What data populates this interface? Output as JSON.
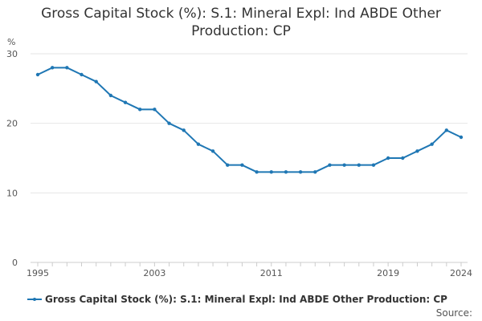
{
  "chart_data": {
    "type": "line",
    "title_lines": [
      "Gross Capital Stock (%): S.1: Mineral Expl: Ind ABDE Other",
      "Production: CP"
    ],
    "ylabel": "%",
    "xlabel": "",
    "x": [
      1995,
      1996,
      1997,
      1998,
      1999,
      2000,
      2001,
      2002,
      2003,
      2004,
      2005,
      2006,
      2007,
      2008,
      2009,
      2010,
      2011,
      2012,
      2013,
      2014,
      2015,
      2016,
      2017,
      2018,
      2019,
      2020,
      2021,
      2022,
      2023,
      2024
    ],
    "series": [
      {
        "name": "Gross Capital Stock (%): S.1: Mineral Expl: Ind ABDE Other Production: CP",
        "values": [
          27,
          28,
          28,
          27,
          26,
          24,
          23,
          22,
          22,
          20,
          19,
          17,
          16,
          14,
          14,
          13,
          13,
          13,
          13,
          13,
          14,
          14,
          14,
          14,
          15,
          15,
          16,
          17,
          19,
          18
        ]
      }
    ],
    "x_ticks": [
      "1995",
      "2003",
      "2011",
      "2019",
      "2024"
    ],
    "y_ticks": [
      "0",
      "10",
      "20",
      "30"
    ],
    "ylim": [
      0,
      30
    ],
    "xlim": [
      1995,
      2024
    ],
    "grid": "horizontal",
    "legend_position": "bottom",
    "colors": {
      "series": "#1f77b4",
      "grid": "#e6e6e6",
      "axis": "#cccccc"
    }
  },
  "source_label": "Source:"
}
